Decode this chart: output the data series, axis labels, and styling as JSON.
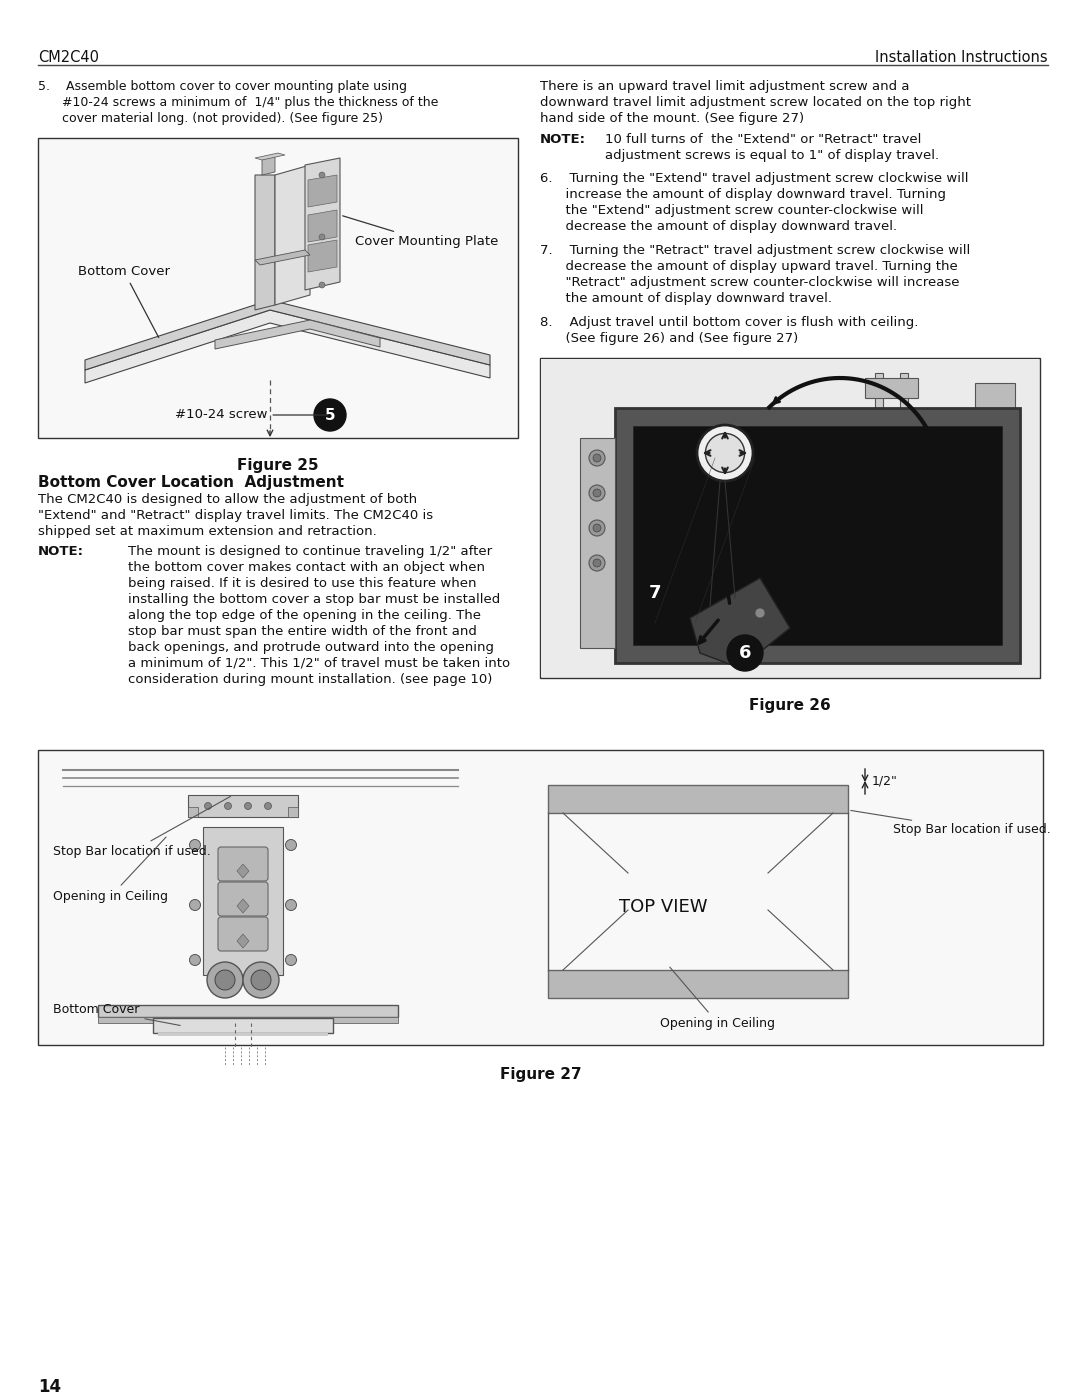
{
  "header_left": "CM2C40",
  "header_right": "Installation Instructions",
  "page_number": "14",
  "bg_color": "#ffffff",
  "step5_line1": "5.    Assemble bottom cover to cover mounting plate using",
  "step5_line2": "      #10-24 screws a minimum of  1/4\" plus the thickness of the",
  "step5_line3": "      cover material long. (not provided). (See figure 25)",
  "figure25_caption": "Figure 25",
  "section_title": "Bottom Cover Location  Adjustment",
  "section_body_lines": [
    "The CM2C40 is designed to allow the adjustment of both",
    "\"Extend\" and \"Retract\" display travel limits. The CM2C40 is",
    "shipped set at maximum extension and retraction."
  ],
  "note1_label": "NOTE:",
  "note1_lines": [
    "The mount is designed to continue traveling 1/2\" after",
    "the bottom cover makes contact with an object when",
    "being raised. If it is desired to use this feature when",
    "installing the bottom cover a stop bar must be installed",
    "along the top edge of the opening in the ceiling. The",
    "stop bar must span the entire width of the front and",
    "back openings, and protrude outward into the opening",
    "a minimum of 1/2\". This 1/2\" of travel must be taken into",
    "consideration during mount installation. (see page 10)"
  ],
  "right_intro_lines": [
    "There is an upward travel limit adjustment screw and a",
    "downward travel limit adjustment screw located on the top right",
    "hand side of the mount. (See figure 27)"
  ],
  "note2_label": "NOTE:",
  "note2_lines": [
    "10 full turns of  the \"Extend\" or \"Retract\" travel",
    "adjustment screws is equal to 1\" of display travel."
  ],
  "step6_lines": [
    "6.    Turning the \"Extend\" travel adjustment screw clockwise will",
    "      increase the amount of display downward travel. Turning",
    "      the \"Extend\" adjustment screw counter-clockwise will",
    "      decrease the amount of display downward travel."
  ],
  "step7_lines": [
    "7.    Turning the \"Retract\" travel adjustment screw clockwise will",
    "      decrease the amount of display upward travel. Turning the",
    "      \"Retract\" adjustment screw counter-clockwise will increase",
    "      the amount of display downward travel."
  ],
  "step8_lines": [
    "8.    Adjust travel until bottom cover is flush with ceiling.",
    "      (See figure 26) and (See figure 27)"
  ],
  "figure26_caption": "Figure 26",
  "figure27_caption": "Figure 27",
  "fig25_label_bottom_cover": "Bottom Cover",
  "fig25_label_cover_plate": "Cover Mounting Plate",
  "fig25_label_screw": "#10-24 screw",
  "fig27_label_stop_bar_left": "Stop Bar location if used.",
  "fig27_label_opening_left": "Opening in Ceiling",
  "fig27_label_bottom_cover": "Bottom Cover",
  "fig27_label_top_view": "TOP VIEW",
  "fig27_label_stop_bar_right": "Stop Bar location if used.",
  "fig27_label_opening_right": "Opening in Ceiling",
  "fig27_label_half": "1/2\""
}
